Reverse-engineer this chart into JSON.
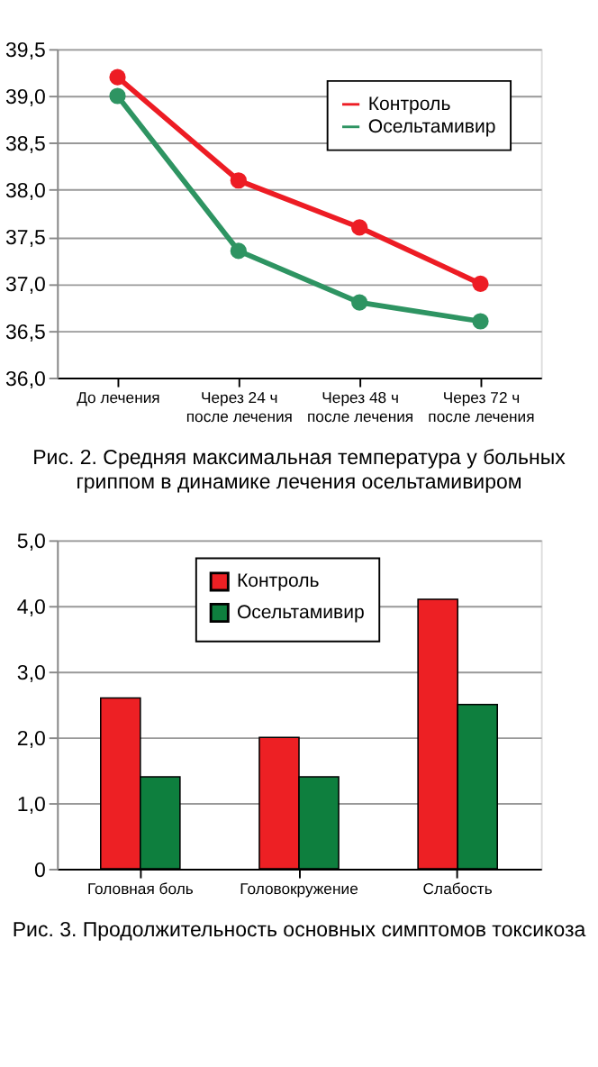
{
  "chart_data": [
    {
      "type": "line",
      "categories": [
        "До лечения",
        "Через 24 ч\nпосле лечения",
        "Через 48 ч\nпосле лечения",
        "Через 72 ч\nпосле лечения"
      ],
      "series": [
        {
          "name": "Контроль",
          "color": "#ed1c24",
          "values": [
            39.2,
            38.1,
            37.6,
            37.0
          ]
        },
        {
          "name": "Осельтамивир",
          "color": "#2e9462",
          "values": [
            39.0,
            37.35,
            36.8,
            36.6
          ]
        }
      ],
      "ylim": [
        36.0,
        39.5
      ],
      "yticks": [
        {
          "value": 36.0,
          "label": "36,0"
        },
        {
          "value": 36.5,
          "label": "36,5"
        },
        {
          "value": 37.0,
          "label": "37,0"
        },
        {
          "value": 37.5,
          "label": "37,5"
        },
        {
          "value": 38.0,
          "label": "38,0"
        },
        {
          "value": 38.5,
          "label": "38,5"
        },
        {
          "value": 39.0,
          "label": "39,0"
        },
        {
          "value": 39.5,
          "label": "39,5"
        }
      ],
      "grid": "y",
      "legend": "top right",
      "marker": "circle",
      "line_style": "solid",
      "annotations": [
        "Рис. 2. Средняя максимальная температура у больных\nгриппом в динамике лечения осельтамивиром"
      ]
    },
    {
      "type": "bar",
      "categories": [
        "Головная боль",
        "Головокружение",
        "Слабость"
      ],
      "series": [
        {
          "name": "Контроль",
          "color": "#ed2024",
          "values": [
            2.6,
            2.0,
            4.1
          ]
        },
        {
          "name": "Осельтамивир",
          "color": "#0e7f3e",
          "values": [
            1.4,
            1.4,
            2.5
          ]
        }
      ],
      "ylim": [
        0,
        5.0
      ],
      "yticks": [
        0,
        {
          "value": 1.0,
          "label": "1,0"
        },
        {
          "value": 2.0,
          "label": "2,0"
        },
        {
          "value": 3.0,
          "label": "3,0"
        },
        {
          "value": 4.0,
          "label": "4,0"
        },
        {
          "value": 5.0,
          "label": "5,0"
        }
      ],
      "grid": "y",
      "legend": "top",
      "annotations": [
        "Рис. 3. Продолжительность основных симптомов токсикоза"
      ]
    }
  ]
}
